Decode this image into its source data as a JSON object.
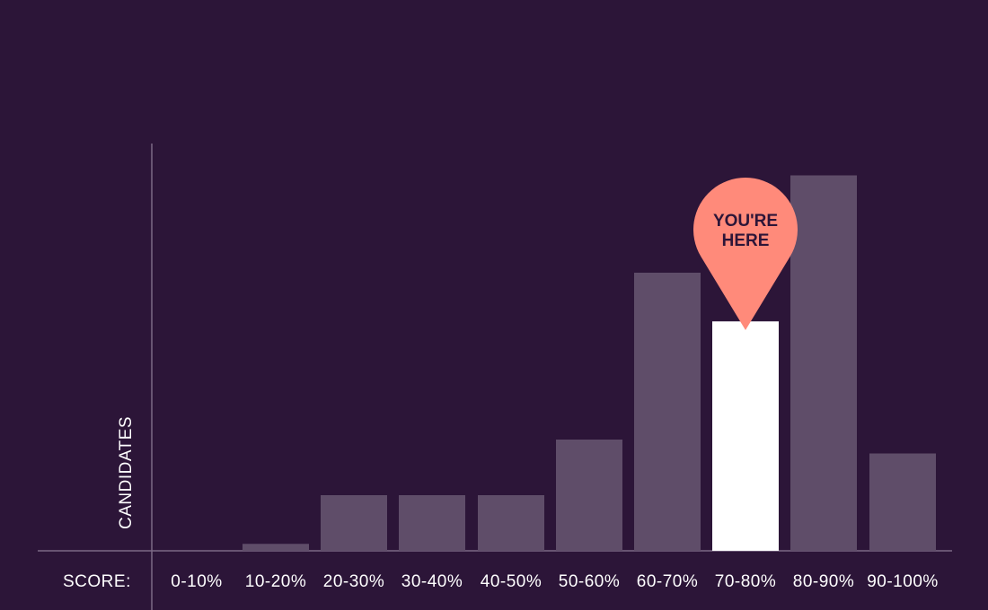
{
  "chart_data": {
    "type": "bar",
    "categories": [
      "0-10%",
      "10-20%",
      "20-30%",
      "30-40%",
      "40-50%",
      "50-60%",
      "60-70%",
      "70-80%",
      "80-90%",
      "90-100%"
    ],
    "values": [
      0,
      0.5,
      4,
      4,
      4,
      8,
      20,
      16.5,
      27,
      7
    ],
    "ylim": [
      0,
      28
    ],
    "ylabel": "CANDIDATES",
    "xlabel": "SCORE:",
    "highlight_index": 7,
    "marker_text": [
      "YOU'RE",
      "HERE"
    ],
    "grid": false
  },
  "colors": {
    "background": "#2c1538",
    "bar": "#5f4d69",
    "highlight": "#ffffff",
    "marker": "#ff8a7a",
    "axis": "#7c6a86"
  }
}
